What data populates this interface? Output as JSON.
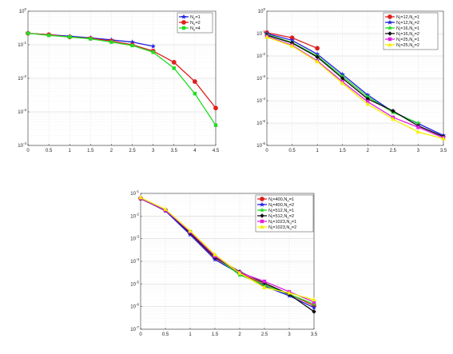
{
  "chart_data": [
    {
      "type": "line",
      "yscale": "log",
      "xlim": [
        0,
        4.5
      ],
      "ylim": [
        0.0001,
        1
      ],
      "x_ticks": [
        "0",
        "0.5",
        "1",
        "1.5",
        "2",
        "2.5",
        "3",
        "3.5",
        "4",
        "4.5"
      ],
      "y_ticks": [
        {
          "base": "10",
          "exp": "0"
        },
        {
          "base": "10",
          "exp": "-1"
        },
        {
          "base": "10",
          "exp": "-2"
        },
        {
          "base": "10",
          "exp": "-3"
        },
        {
          "base": "10",
          "exp": "-4"
        }
      ],
      "grid": true,
      "legend_position": "top-right",
      "series": [
        {
          "name": "N₂=1",
          "label_main": "N",
          "label_sub": "α",
          "label_rest": "=1",
          "color": "#1f1fe0",
          "marker": "star",
          "x": [
            0,
            0.5,
            1,
            1.5,
            2,
            2.5,
            3
          ],
          "y": [
            0.22,
            0.2,
            0.18,
            0.16,
            0.14,
            0.12,
            0.09
          ]
        },
        {
          "name": "N₂=2",
          "label_main": "N",
          "label_sub": "α",
          "label_rest": "=2",
          "color": "#e01f1f",
          "marker": "circle",
          "x": [
            0,
            0.5,
            1,
            1.5,
            2,
            2.5,
            3,
            3.5,
            4,
            4.5
          ],
          "y": [
            0.22,
            0.2,
            0.17,
            0.155,
            0.13,
            0.1,
            0.065,
            0.03,
            0.008,
            0.0013
          ]
        },
        {
          "name": "N₂=4",
          "label_main": "N",
          "label_sub": "α",
          "label_rest": "=4",
          "color": "#22dd22",
          "marker": "square",
          "x": [
            0,
            0.5,
            1,
            1.5,
            2,
            2.5,
            3,
            3.5,
            4,
            4.5
          ],
          "y": [
            0.22,
            0.19,
            0.17,
            0.15,
            0.12,
            0.095,
            0.06,
            0.02,
            0.0035,
            0.0004
          ]
        }
      ]
    },
    {
      "type": "line",
      "yscale": "log",
      "xlim": [
        0,
        3.5
      ],
      "ylim": [
        1e-06,
        1
      ],
      "x_ticks": [
        "0",
        "0.5",
        "1",
        "1.5",
        "2",
        "2.5",
        "3",
        "3.5"
      ],
      "y_ticks": [
        {
          "base": "10",
          "exp": "0"
        },
        {
          "base": "10",
          "exp": "-1"
        },
        {
          "base": "10",
          "exp": "-2"
        },
        {
          "base": "10",
          "exp": "-3"
        },
        {
          "base": "10",
          "exp": "-4"
        },
        {
          "base": "10",
          "exp": "-5"
        },
        {
          "base": "10",
          "exp": "-6"
        }
      ],
      "grid": true,
      "legend_position": "top-right",
      "series": [
        {
          "name": "N_t=12,N_α=1",
          "label_main": "N",
          "label_sub": "t",
          "label_rest": "=12,N",
          "label_sub2": "α",
          "label_rest2": "=1",
          "color": "#e01f1f",
          "marker": "circle",
          "x": [
            0,
            0.5,
            1
          ],
          "y": [
            0.11,
            0.065,
            0.022
          ]
        },
        {
          "name": "N_t=12,N_α=2",
          "label_main": "N",
          "label_sub": "t",
          "label_rest": "=12,N",
          "label_sub2": "α",
          "label_rest2": "=2",
          "color": "#1f1fe0",
          "marker": "star",
          "x": [
            0,
            0.5,
            1,
            1.5,
            2,
            2.5,
            3,
            3.5
          ],
          "y": [
            0.1,
            0.05,
            0.012,
            0.0015,
            0.00018,
            3.2e-05,
            9.5e-06,
            2.8e-06
          ]
        },
        {
          "name": "N_t=16,N_α=1",
          "label_main": "N",
          "label_sub": "t",
          "label_rest": "=16,N",
          "label_sub2": "α",
          "label_rest2": "=1",
          "color": "#22dd22",
          "marker": "star",
          "x": [
            0,
            0.5,
            1,
            1.5,
            2,
            2.5,
            3
          ],
          "y": [
            0.09,
            0.04,
            0.01,
            0.0012,
            0.00015,
            3e-05,
            1e-05
          ]
        },
        {
          "name": "N_t=16,N_α=2",
          "label_main": "N",
          "label_sub": "t",
          "label_rest": "=16,N",
          "label_sub2": "α",
          "label_rest2": "=2",
          "color": "#111111",
          "marker": "diamond",
          "x": [
            0,
            0.5,
            1,
            1.5,
            2,
            2.5,
            3,
            3.5
          ],
          "y": [
            0.085,
            0.038,
            0.009,
            0.001,
            0.00012,
            3.5e-05,
            7.5e-06,
            2.5e-06
          ]
        },
        {
          "name": "N_t=25,N_α=1",
          "label_main": "N",
          "label_sub": "t",
          "label_rest": "=25,N",
          "label_sub2": "α",
          "label_rest2": "=1",
          "color": "#e020e0",
          "marker": "square",
          "x": [
            0,
            0.5,
            1,
            1.5,
            2,
            2.5,
            3,
            3.5
          ],
          "y": [
            0.075,
            0.03,
            0.006,
            0.0007,
            9e-05,
            1.8e-05,
            6.5e-06,
            2.2e-06
          ]
        },
        {
          "name": "N_t=25,N_α=2",
          "label_main": "N",
          "label_sub": "t",
          "label_rest": "=25,N",
          "label_sub2": "α",
          "label_rest2": "=2",
          "color": "#f2f200",
          "marker": "triangle",
          "x": [
            0,
            0.5,
            1,
            1.5,
            2,
            2.5,
            3,
            3.5
          ],
          "y": [
            0.07,
            0.028,
            0.0055,
            0.0006,
            7e-05,
            1.5e-05,
            4e-06,
            2e-06
          ]
        }
      ]
    },
    {
      "type": "line",
      "yscale": "log",
      "xlim": [
        0,
        3.5
      ],
      "ylim": [
        1e-07,
        0.1
      ],
      "x_ticks": [
        "0",
        "0.5",
        "1",
        "1.5",
        "2",
        "2.5",
        "3",
        "3.5"
      ],
      "y_ticks": [
        {
          "base": "10",
          "exp": "-1"
        },
        {
          "base": "10",
          "exp": "-2"
        },
        {
          "base": "10",
          "exp": "-3"
        },
        {
          "base": "10",
          "exp": "-4"
        },
        {
          "base": "10",
          "exp": "-5"
        },
        {
          "base": "10",
          "exp": "-6"
        },
        {
          "base": "10",
          "exp": "-7"
        }
      ],
      "grid": true,
      "legend_position": "top-right",
      "series": [
        {
          "name": "N_t=400,N_α=1",
          "label_main": "N",
          "label_sub": "t",
          "label_rest": "=400,N",
          "label_sub2": "α",
          "label_rest2": "=1",
          "color": "#e01f1f",
          "marker": "circle",
          "x": [
            0,
            0.5,
            1,
            1.5,
            2,
            2.5,
            3,
            3.5
          ],
          "y": [
            0.06,
            0.018,
            0.0017,
            0.00014,
            3e-05,
            9.5e-06,
            3.5e-06,
            1.1e-06
          ]
        },
        {
          "name": "N_t=400,N_α=2",
          "label_main": "N",
          "label_sub": "t",
          "label_rest": "=400,N",
          "label_sub2": "α",
          "label_rest2": "=2",
          "color": "#1f1fe0",
          "marker": "star",
          "x": [
            0,
            0.5,
            1,
            1.5,
            2,
            2.5,
            3,
            3.5
          ],
          "y": [
            0.06,
            0.017,
            0.0015,
            0.00012,
            2.8e-05,
            8e-06,
            3e-06,
            9e-07
          ]
        },
        {
          "name": "N_t=512,N_α=1",
          "label_main": "N",
          "label_sub": "t",
          "label_rest": "=512,N",
          "label_sub2": "α",
          "label_rest2": "=1",
          "color": "#22dd22",
          "marker": "star",
          "x": [
            0,
            0.5,
            1,
            1.5,
            2,
            2.5,
            3,
            3.5
          ],
          "y": [
            0.062,
            0.019,
            0.0019,
            0.00016,
            2.5e-05,
            9e-06,
            3.5e-06,
            1.3e-06
          ]
        },
        {
          "name": "N_t=512,N_α=2",
          "label_main": "N",
          "label_sub": "t",
          "label_rest": "=512,N",
          "label_sub2": "α",
          "label_rest2": "=2",
          "color": "#111111",
          "marker": "diamond",
          "x": [
            0,
            0.5,
            1,
            1.5,
            2,
            2.5,
            3,
            3.5
          ],
          "y": [
            0.058,
            0.018,
            0.0018,
            0.00015,
            3.5e-05,
            1.1e-05,
            3.5e-06,
            6e-07
          ]
        },
        {
          "name": "N_t=1023,N_α=1",
          "label_main": "N",
          "label_sub": "t",
          "label_rest": "=1023,N",
          "label_sub2": "α",
          "label_rest2": "=1",
          "color": "#e020e0",
          "marker": "square",
          "x": [
            0,
            0.5,
            1,
            1.5,
            2,
            2.5,
            3,
            3.5
          ],
          "y": [
            0.06,
            0.018,
            0.002,
            0.00017,
            3.2e-05,
            1.3e-05,
            4.5e-06,
            1.6e-06
          ]
        },
        {
          "name": "N_t=1023,N_α=2",
          "label_main": "N",
          "label_sub": "t",
          "label_rest": "=1023,N",
          "label_sub2": "α",
          "label_rest2": "=2",
          "color": "#f2f200",
          "marker": "triangle",
          "x": [
            0,
            0.5,
            1,
            1.5,
            2,
            2.5,
            3,
            3.5
          ],
          "y": [
            0.065,
            0.02,
            0.0022,
            0.0002,
            3e-05,
            7e-06,
            4e-06,
            2e-06
          ]
        }
      ]
    }
  ]
}
